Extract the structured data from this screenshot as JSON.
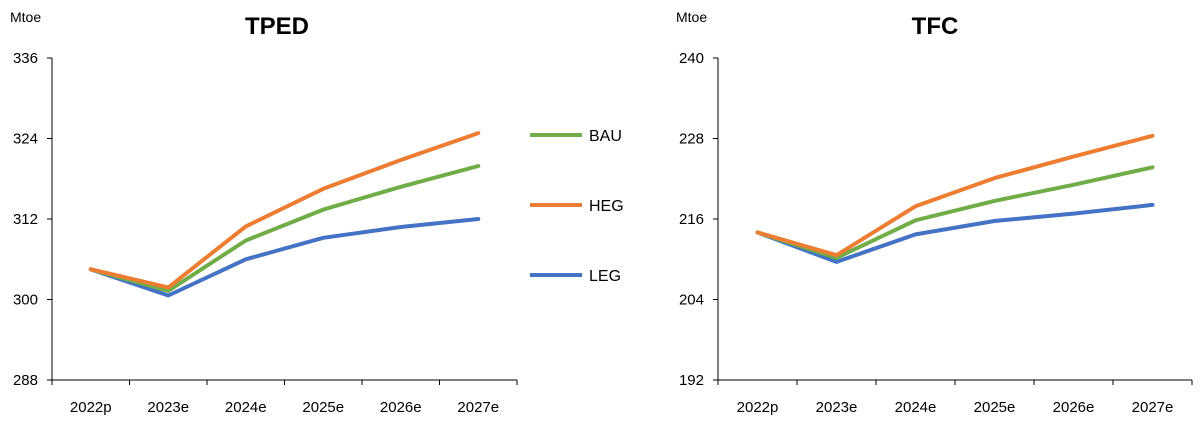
{
  "chart_data": [
    {
      "type": "line",
      "title": "TPED",
      "ylabel": "Mtoe",
      "xlabel": "",
      "categories": [
        "2022p",
        "2023e",
        "2024e",
        "2025e",
        "2026e",
        "2027e"
      ],
      "ylim": [
        288,
        336
      ],
      "yticks": [
        288,
        300,
        312,
        324,
        336
      ],
      "grid": false,
      "series": [
        {
          "name": "BAU",
          "values": [
            304.5,
            301.3,
            308.8,
            313.4,
            316.8,
            319.9
          ],
          "color": "#70ad47"
        },
        {
          "name": "HEG",
          "values": [
            304.5,
            301.8,
            310.9,
            316.5,
            320.8,
            324.8
          ],
          "color": "#ed7d31"
        },
        {
          "name": "LEG",
          "values": [
            304.5,
            300.6,
            306.0,
            309.2,
            310.8,
            312.0
          ],
          "color": "#4472c4"
        }
      ]
    },
    {
      "type": "line",
      "title": "TFC",
      "ylabel": "Mtoe",
      "xlabel": "",
      "categories": [
        "2022p",
        "2023e",
        "2024e",
        "2025e",
        "2026e",
        "2027e"
      ],
      "ylim": [
        192,
        240
      ],
      "yticks": [
        192,
        204,
        216,
        228,
        240
      ],
      "grid": false,
      "series": [
        {
          "name": "BAU",
          "values": [
            214.0,
            210.2,
            215.8,
            218.7,
            221.1,
            223.7
          ],
          "color": "#70ad47"
        },
        {
          "name": "HEG",
          "values": [
            214.0,
            210.6,
            217.9,
            222.1,
            225.3,
            228.4
          ],
          "color": "#ed7d31"
        },
        {
          "name": "LEG",
          "values": [
            214.0,
            209.6,
            213.7,
            215.7,
            216.8,
            218.1
          ],
          "color": "#4472c4"
        }
      ]
    }
  ],
  "legend": {
    "placement": "between-charts",
    "items": [
      {
        "name": "BAU",
        "color": "#70ad47"
      },
      {
        "name": "HEG",
        "color": "#ed7d31"
      },
      {
        "name": "LEG",
        "color": "#4472c4"
      }
    ]
  }
}
